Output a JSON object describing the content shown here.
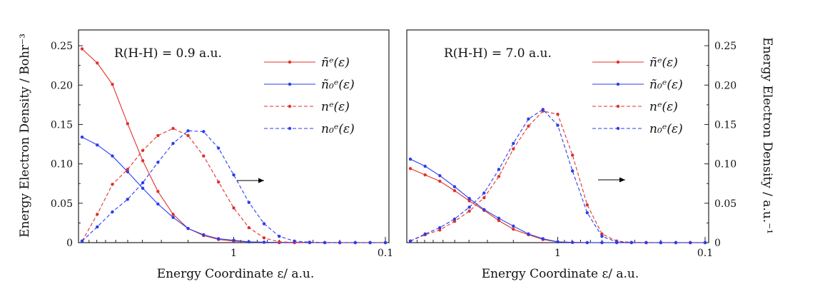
{
  "colors": {
    "red": "#e0312b",
    "blue": "#2a3cf0",
    "axis": "#222222"
  },
  "axes": {
    "left_ylabel": "Energy Electron Density / Bohr⁻³",
    "right_ylabel": "Energy Electron Density / a.u.⁻¹",
    "xlabel": "Energy Coordinate ε/ a.u."
  },
  "legend": [
    "ñᵉ(ε)",
    "ñ₀ᵉ(ε)",
    "nᵉ(ε)",
    "n₀ᵉ(ε)"
  ],
  "chart_data": [
    {
      "type": "line",
      "title": "",
      "annotation": "R(H-H) = 0.9 a.u.",
      "xlabel": "Energy Coordinate ε/ a.u.",
      "ylabel": "Energy Electron Density / Bohr⁻³",
      "xscale": "log (reversed, -0.5 decade per 0.05)",
      "xticks": [
        "1",
        "0.1"
      ],
      "yticks": [
        "0",
        "0.05",
        "0.10",
        "0.15",
        "0.20",
        "0.25"
      ],
      "ylim": [
        0,
        0.27
      ],
      "x": [
        10.0,
        7.94,
        6.31,
        5.01,
        3.98,
        3.16,
        2.51,
        2.0,
        1.58,
        1.26,
        1.0,
        0.794,
        0.631,
        0.501,
        0.398,
        0.316,
        0.251,
        0.2,
        0.158,
        0.126,
        0.1
      ],
      "series": [
        {
          "name": "ñᵉ(ε)",
          "color": "red",
          "style": "solid",
          "values": [
            0.246,
            0.228,
            0.201,
            0.151,
            0.104,
            0.065,
            0.036,
            0.018,
            0.009,
            0.004,
            0.002,
            0.001,
            0.0005,
            0.0002,
            0.0001,
            0,
            0,
            0,
            0,
            0,
            0
          ]
        },
        {
          "name": "ñ₀ᵉ(ε)",
          "color": "blue",
          "style": "solid",
          "values": [
            0.134,
            0.124,
            0.11,
            0.09,
            0.069,
            0.049,
            0.032,
            0.018,
            0.01,
            0.005,
            0.003,
            0.001,
            0.0005,
            0.0002,
            0.0001,
            0,
            0,
            0,
            0,
            0,
            0
          ]
        },
        {
          "name": "nᵉ(ε)",
          "color": "red",
          "style": "dashed",
          "values": [
            0.002,
            0.036,
            0.074,
            0.093,
            0.117,
            0.136,
            0.145,
            0.136,
            0.11,
            0.077,
            0.044,
            0.019,
            0.006,
            0.001,
            0.0003,
            0.0001,
            0,
            0,
            0,
            0,
            0
          ]
        },
        {
          "name": "n₀ᵉ(ε)",
          "color": "blue",
          "style": "dashed",
          "values": [
            0.002,
            0.02,
            0.039,
            0.055,
            0.076,
            0.102,
            0.126,
            0.142,
            0.141,
            0.12,
            0.086,
            0.051,
            0.024,
            0.008,
            0.002,
            0.0005,
            0.0001,
            0,
            0,
            0,
            0
          ]
        }
      ]
    },
    {
      "type": "line",
      "title": "",
      "annotation": "R(H-H) = 7.0 a.u.",
      "xlabel": "Energy Coordinate ε/ a.u.",
      "ylabel": "Energy Electron Density / a.u.⁻¹",
      "xscale": "log (reversed)",
      "xticks": [
        "1",
        "0.1"
      ],
      "yticks": [
        "0",
        "0.05",
        "0.10",
        "0.15",
        "0.20",
        "0.25"
      ],
      "ylim": [
        0,
        0.27
      ],
      "x": [
        10.0,
        7.94,
        6.31,
        5.01,
        3.98,
        3.16,
        2.51,
        2.0,
        1.58,
        1.26,
        1.0,
        0.794,
        0.631,
        0.501,
        0.398,
        0.316,
        0.251,
        0.2,
        0.158,
        0.126,
        0.1
      ],
      "series": [
        {
          "name": "ñᵉ(ε)",
          "color": "red",
          "style": "solid",
          "values": [
            0.094,
            0.086,
            0.078,
            0.066,
            0.053,
            0.041,
            0.028,
            0.017,
            0.01,
            0.004,
            0.001,
            0.0003,
            0,
            0,
            0,
            0,
            0,
            0,
            0,
            0,
            0
          ]
        },
        {
          "name": "ñ₀ᵉ(ε)",
          "color": "blue",
          "style": "solid",
          "values": [
            0.106,
            0.097,
            0.085,
            0.071,
            0.056,
            0.042,
            0.031,
            0.021,
            0.011,
            0.005,
            0.001,
            0.0003,
            0,
            0,
            0,
            0,
            0,
            0,
            0,
            0,
            0
          ]
        },
        {
          "name": "nᵉ(ε)",
          "color": "red",
          "style": "dashed",
          "values": [
            0.002,
            0.01,
            0.016,
            0.027,
            0.04,
            0.057,
            0.084,
            0.119,
            0.148,
            0.167,
            0.163,
            0.111,
            0.048,
            0.011,
            0.002,
            0.0003,
            0,
            0,
            0,
            0,
            0
          ]
        },
        {
          "name": "n₀ᵉ(ε)",
          "color": "blue",
          "style": "dashed",
          "values": [
            0.002,
            0.011,
            0.019,
            0.03,
            0.045,
            0.063,
            0.093,
            0.126,
            0.157,
            0.169,
            0.149,
            0.091,
            0.038,
            0.008,
            0.001,
            0.0002,
            0,
            0,
            0,
            0,
            0
          ]
        }
      ]
    }
  ]
}
